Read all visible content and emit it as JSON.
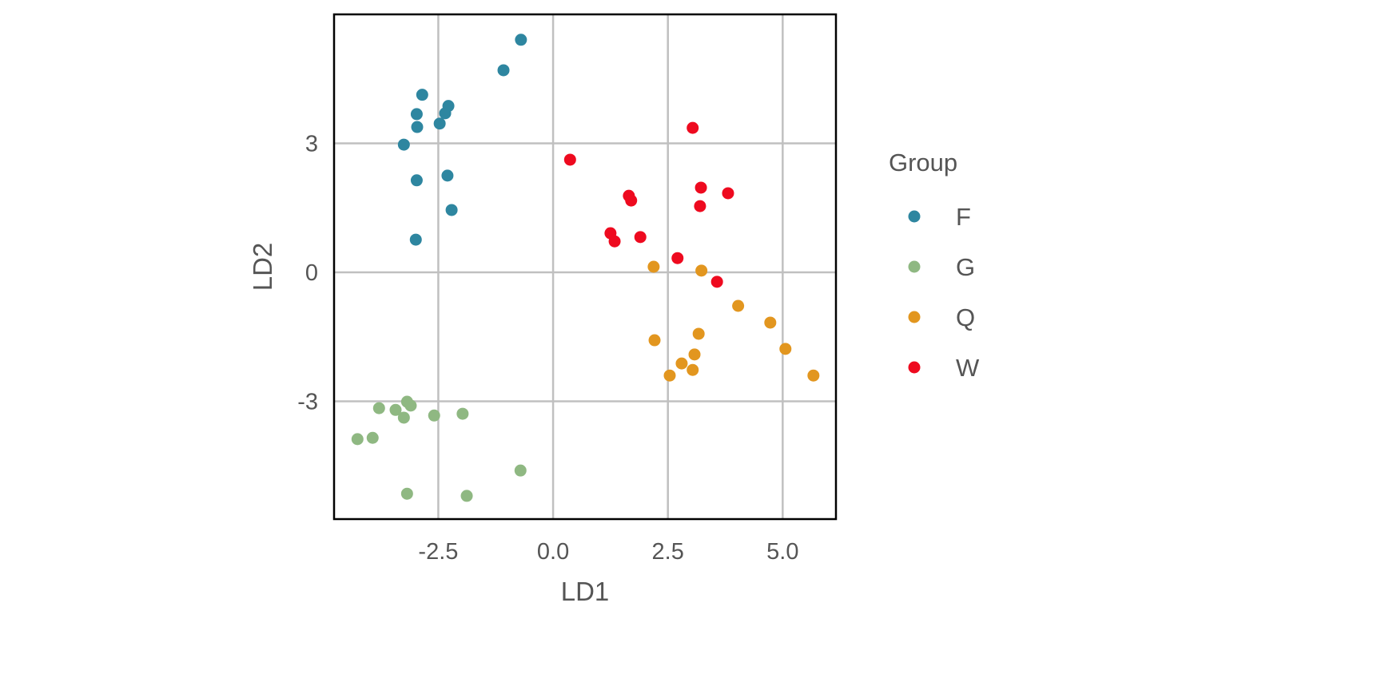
{
  "chart_data": {
    "type": "scatter",
    "title": "",
    "xlabel": "LD1",
    "ylabel": "LD2",
    "xlim": [
      -4.77,
      6.16
    ],
    "ylim": [
      -5.74,
      6.0
    ],
    "xticks": [
      -2.5,
      0.0,
      2.5,
      5.0
    ],
    "xtick_labels": [
      "-2.5",
      "0.0",
      "2.5",
      "5.0"
    ],
    "yticks": [
      -3,
      0,
      3
    ],
    "ytick_labels": [
      "-3",
      "0",
      "3"
    ],
    "grid": true,
    "legend": {
      "title": "Group",
      "placement": "right"
    },
    "series": [
      {
        "name": "F",
        "color": "#2e86a0",
        "points": [
          [
            -0.7,
            5.41
          ],
          [
            -1.08,
            4.7
          ],
          [
            -2.85,
            4.13
          ],
          [
            -2.28,
            3.87
          ],
          [
            -2.97,
            3.68
          ],
          [
            -2.35,
            3.7
          ],
          [
            -2.47,
            3.46
          ],
          [
            -2.96,
            3.38
          ],
          [
            -3.25,
            2.97
          ],
          [
            -2.3,
            2.25
          ],
          [
            -2.97,
            2.14
          ],
          [
            -2.21,
            1.45
          ],
          [
            -2.99,
            0.76
          ]
        ]
      },
      {
        "name": "G",
        "color": "#8fb882",
        "points": [
          [
            -4.26,
            -3.88
          ],
          [
            -3.93,
            -3.85
          ],
          [
            -3.79,
            -3.16
          ],
          [
            -3.43,
            -3.2
          ],
          [
            -3.18,
            -3.01
          ],
          [
            -3.1,
            -3.1
          ],
          [
            -3.25,
            -3.38
          ],
          [
            -2.59,
            -3.33
          ],
          [
            -1.97,
            -3.29
          ],
          [
            -0.71,
            -4.61
          ],
          [
            -3.18,
            -5.15
          ],
          [
            -1.88,
            -5.2
          ]
        ]
      },
      {
        "name": "Q",
        "color": "#e2961f",
        "points": [
          [
            2.19,
            0.13
          ],
          [
            3.23,
            0.04
          ],
          [
            4.03,
            -0.78
          ],
          [
            4.73,
            -1.17
          ],
          [
            3.17,
            -1.43
          ],
          [
            2.21,
            -1.58
          ],
          [
            5.06,
            -1.78
          ],
          [
            3.08,
            -1.91
          ],
          [
            2.8,
            -2.12
          ],
          [
            3.04,
            -2.27
          ],
          [
            2.54,
            -2.4
          ],
          [
            5.67,
            -2.4
          ]
        ]
      },
      {
        "name": "W",
        "color": "#ee0a1f",
        "points": [
          [
            3.04,
            3.36
          ],
          [
            0.37,
            2.62
          ],
          [
            3.22,
            1.97
          ],
          [
            3.81,
            1.84
          ],
          [
            1.65,
            1.78
          ],
          [
            1.7,
            1.67
          ],
          [
            3.2,
            1.54
          ],
          [
            1.25,
            0.91
          ],
          [
            1.9,
            0.82
          ],
          [
            1.34,
            0.72
          ],
          [
            2.71,
            0.33
          ],
          [
            3.57,
            -0.22
          ]
        ]
      }
    ]
  }
}
